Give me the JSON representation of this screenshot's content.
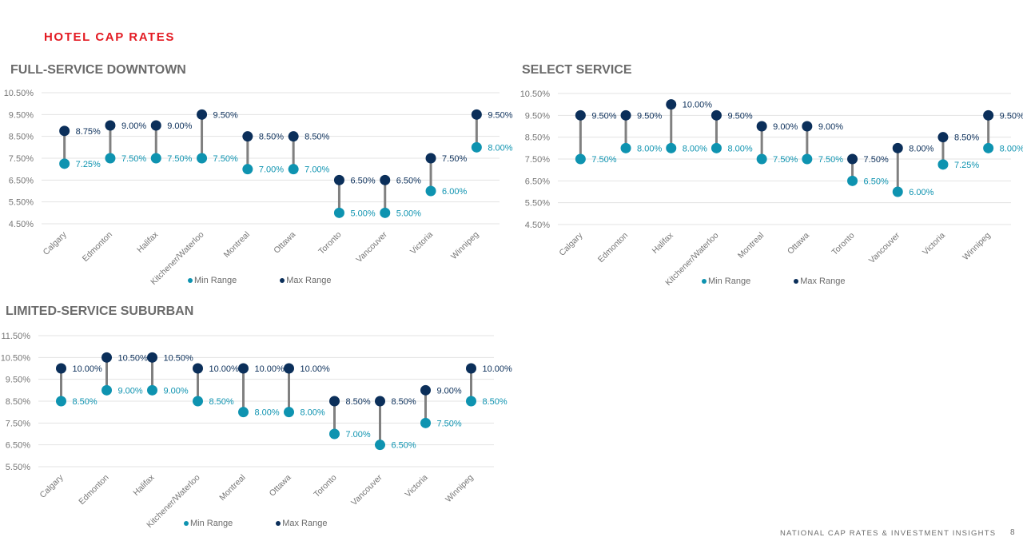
{
  "page": {
    "heading": "HOTEL CAP RATES",
    "footer": "NATIONAL CAP RATES & INVESTMENT INSIGHTS",
    "page_number": "8"
  },
  "colors": {
    "heading": "#e31b23",
    "min_marker": "#0e93b0",
    "max_marker": "#0b2f5a",
    "connector": "#808080",
    "axis_text": "#777777",
    "gridline": "#e3e3e3"
  },
  "chart_data": [
    {
      "type": "dumbbell",
      "title": "FULL-SERVICE DOWNTOWN",
      "categories": [
        "Calgary",
        "Edmonton",
        "Halifax",
        "Kitchener/Waterloo",
        "Montreal",
        "Ottawa",
        "Toronto",
        "Vancouver",
        "Victoria",
        "Winnipeg"
      ],
      "series": [
        {
          "name": "Min Range",
          "values": [
            7.25,
            7.5,
            7.5,
            7.5,
            7.0,
            7.0,
            5.0,
            5.0,
            6.0,
            8.0
          ],
          "labels": [
            "7.25%",
            "7.50%",
            "7.50%",
            "7.50%",
            "7.00%",
            "7.00%",
            "5.00%",
            "5.00%",
            "6.00%",
            "8.00%"
          ]
        },
        {
          "name": "Max Range",
          "values": [
            8.75,
            9.0,
            9.0,
            9.5,
            8.5,
            8.5,
            6.5,
            6.5,
            7.5,
            9.5
          ],
          "labels": [
            "8.75%",
            "9.00%",
            "9.00%",
            "9.50%",
            "8.50%",
            "8.50%",
            "6.50%",
            "6.50%",
            "7.50%",
            "9.50%"
          ]
        }
      ],
      "ylim": [
        4.5,
        10.5
      ],
      "yticks": [
        "4.50%",
        "5.50%",
        "6.50%",
        "7.50%",
        "8.50%",
        "9.50%",
        "10.50%"
      ],
      "xlabel": "",
      "ylabel": "",
      "grid": true,
      "legend": "bottom"
    },
    {
      "type": "dumbbell",
      "title": "SELECT SERVICE",
      "categories": [
        "Calgary",
        "Edmonton",
        "Halifax",
        "Kitchener/Waterloo",
        "Montreal",
        "Ottawa",
        "Toronto",
        "Vancouver",
        "Victoria",
        "Winnipeg"
      ],
      "series": [
        {
          "name": "Min Range",
          "values": [
            7.5,
            8.0,
            8.0,
            8.0,
            7.5,
            7.5,
            6.5,
            6.0,
            7.25,
            8.0
          ],
          "labels": [
            "7.50%",
            "8.00%",
            "8.00%",
            "8.00%",
            "7.50%",
            "7.50%",
            "6.50%",
            "6.00%",
            "7.25%",
            "8.00%"
          ]
        },
        {
          "name": "Max Range",
          "values": [
            9.5,
            9.5,
            10.0,
            9.5,
            9.0,
            9.0,
            7.5,
            8.0,
            8.5,
            9.5
          ],
          "labels": [
            "9.50%",
            "9.50%",
            "10.00%",
            "9.50%",
            "9.00%",
            "9.00%",
            "7.50%",
            "8.00%",
            "8.50%",
            "9.50%"
          ]
        }
      ],
      "ylim": [
        4.5,
        10.5
      ],
      "yticks": [
        "4.50%",
        "5.50%",
        "6.50%",
        "7.50%",
        "8.50%",
        "9.50%",
        "10.50%"
      ],
      "xlabel": "",
      "ylabel": "",
      "grid": true,
      "legend": "bottom"
    },
    {
      "type": "dumbbell",
      "title": "LIMITED-SERVICE SUBURBAN",
      "categories": [
        "Calgary",
        "Edmonton",
        "Halifax",
        "Kitchener/Waterloo",
        "Montreal",
        "Ottawa",
        "Toronto",
        "Vancouver",
        "Victoria",
        "Winnipeg"
      ],
      "series": [
        {
          "name": "Min Range",
          "values": [
            8.5,
            9.0,
            9.0,
            8.5,
            8.0,
            8.0,
            7.0,
            6.5,
            7.5,
            8.5
          ],
          "labels": [
            "8.50%",
            "9.00%",
            "9.00%",
            "8.50%",
            "8.00%",
            "8.00%",
            "7.00%",
            "6.50%",
            "7.50%",
            "8.50%"
          ]
        },
        {
          "name": "Max Range",
          "values": [
            10.0,
            10.5,
            10.5,
            10.0,
            10.0,
            10.0,
            8.5,
            8.5,
            9.0,
            10.0
          ],
          "labels": [
            "10.00%",
            "10.50%",
            "10.50%",
            "10.00%",
            "10.00%",
            "10.00%",
            "8.50%",
            "8.50%",
            "9.00%",
            "10.00%"
          ]
        }
      ],
      "ylim": [
        5.5,
        11.5
      ],
      "yticks": [
        "5.50%",
        "6.50%",
        "7.50%",
        "8.50%",
        "9.50%",
        "10.50%",
        "11.50%"
      ],
      "xlabel": "",
      "ylabel": "",
      "grid": true,
      "legend": "bottom"
    }
  ]
}
